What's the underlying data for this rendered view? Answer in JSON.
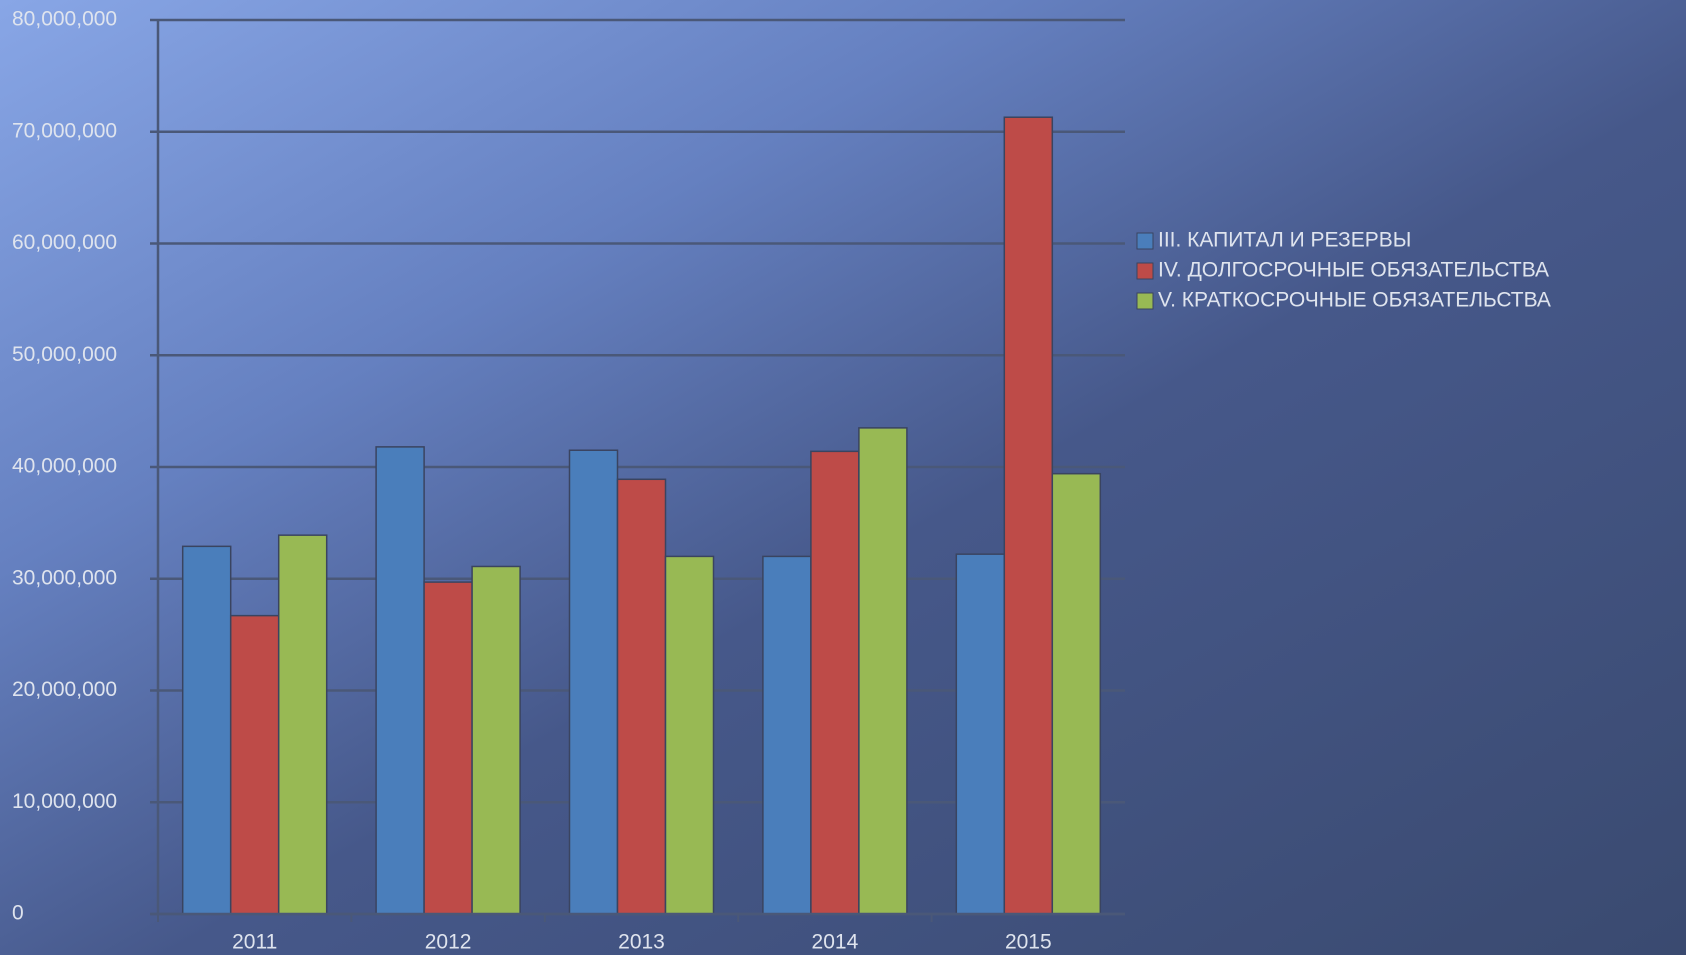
{
  "chart_data": {
    "type": "bar",
    "categories": [
      "2011",
      "2012",
      "2013",
      "2014",
      "2015"
    ],
    "series": [
      {
        "name": "III. КАПИТАЛ И РЕЗЕРВЫ",
        "color": "#4a7ebb",
        "values": [
          32900000,
          41800000,
          41500000,
          32000000,
          32200000
        ]
      },
      {
        "name": "IV. ДОЛГОСРОЧНЫЕ ОБЯЗАТЕЛЬСТВА",
        "color": "#be4b48",
        "values": [
          26700000,
          29700000,
          38900000,
          41400000,
          71300000
        ]
      },
      {
        "name": "V. КРАТКОСРОЧНЫЕ ОБЯЗАТЕЛЬСТВА",
        "color": "#98b954",
        "values": [
          33900000,
          31100000,
          32000000,
          43500000,
          39400000
        ]
      }
    ],
    "ylim": [
      0,
      80000000
    ],
    "yticks": [
      0,
      {
        "value": 10000000,
        "label": "10,000,000"
      },
      {
        "value": 20000000,
        "label": "20,000,000"
      },
      {
        "value": 30000000,
        "label": "30,000,000"
      },
      {
        "value": 40000000,
        "label": "40,000,000"
      },
      {
        "value": 50000000,
        "label": "50,000,000"
      },
      {
        "value": 60000000,
        "label": "60,000,000"
      },
      {
        "value": 70000000,
        "label": "70,000,000"
      },
      {
        "value": 80000000,
        "label": "80,000,000"
      }
    ],
    "grid": true,
    "legend": "right"
  }
}
